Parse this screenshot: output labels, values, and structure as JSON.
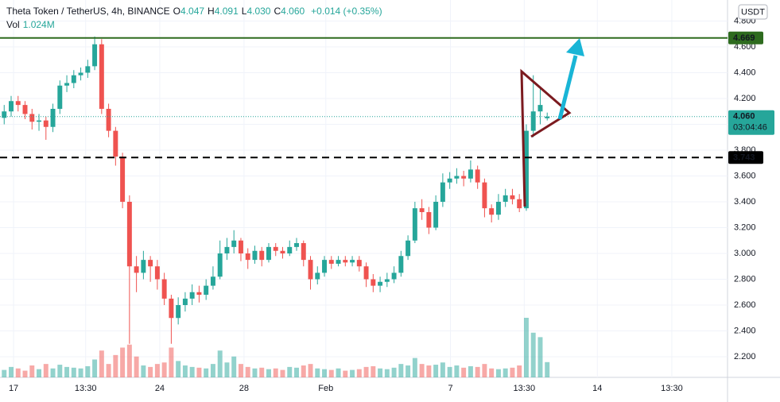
{
  "header": {
    "symbol": "Theta Token / TetherUS, 4h, BINANCE",
    "ohlc": [
      {
        "label": "O",
        "value": "4.047"
      },
      {
        "label": "H",
        "value": "4.091"
      },
      {
        "label": "L",
        "value": "4.030"
      },
      {
        "label": "C",
        "value": "4.060"
      }
    ],
    "change": "+0.014 (+0.35%)",
    "volume_label": "Vol",
    "volume_value": "1.024M"
  },
  "chart_data": {
    "type": "candlestick",
    "currency": "USDT",
    "open": [
      4.05,
      4.1,
      4.18,
      4.15,
      4.08,
      4.02,
      4.03,
      3.98,
      4.12,
      4.3,
      4.32,
      4.38,
      4.4,
      4.45,
      4.62,
      4.12,
      3.95,
      3.75,
      3.4,
      2.9,
      2.85,
      2.95,
      2.9,
      2.8,
      2.65,
      2.5,
      2.6,
      2.65,
      2.7,
      2.68,
      2.75,
      2.82,
      3.0,
      3.05,
      3.1,
      3.0,
      2.95,
      3.02,
      2.95,
      3.05,
      3.02,
      3.0,
      3.05,
      3.08,
      2.95,
      2.8,
      2.85,
      2.95,
      2.92,
      2.95,
      2.93,
      2.95,
      2.9,
      2.8,
      2.75,
      2.78,
      2.8,
      2.85,
      2.98,
      3.1,
      3.35,
      3.32,
      3.2,
      3.4,
      3.55,
      3.58,
      3.6,
      3.58,
      3.65,
      3.55,
      3.35,
      3.3,
      3.4,
      3.45,
      3.42,
      3.35,
      3.95,
      4.1,
      4.047
    ],
    "high": [
      4.15,
      4.22,
      4.22,
      4.18,
      4.12,
      4.08,
      4.06,
      4.16,
      4.34,
      4.38,
      4.42,
      4.44,
      4.5,
      4.68,
      4.66,
      4.16,
      3.98,
      3.78,
      3.45,
      2.98,
      3.02,
      2.98,
      2.95,
      2.85,
      2.68,
      2.66,
      2.7,
      2.76,
      2.75,
      2.8,
      2.9,
      3.1,
      3.12,
      3.18,
      3.12,
      3.04,
      3.06,
      3.05,
      3.08,
      3.08,
      3.05,
      3.1,
      3.12,
      3.1,
      2.98,
      2.9,
      2.98,
      2.98,
      2.98,
      2.98,
      2.98,
      2.98,
      2.93,
      2.84,
      2.82,
      2.85,
      2.9,
      3.02,
      3.14,
      3.4,
      3.42,
      3.36,
      3.45,
      3.62,
      3.63,
      3.66,
      3.64,
      3.72,
      3.68,
      3.58,
      3.38,
      3.46,
      3.5,
      3.5,
      3.46,
      4.0,
      4.38,
      4.28,
      4.091
    ],
    "low": [
      4.0,
      4.06,
      4.1,
      4.04,
      3.96,
      3.95,
      3.88,
      3.94,
      4.08,
      4.25,
      4.28,
      4.34,
      4.36,
      4.42,
      4.08,
      3.9,
      3.68,
      3.35,
      2.3,
      2.7,
      2.8,
      2.78,
      2.72,
      2.6,
      2.3,
      2.45,
      2.55,
      2.6,
      2.62,
      2.64,
      2.72,
      2.8,
      2.95,
      3.0,
      2.94,
      2.88,
      2.92,
      2.9,
      2.93,
      2.98,
      2.96,
      2.98,
      3.02,
      2.9,
      2.72,
      2.76,
      2.82,
      2.88,
      2.9,
      2.9,
      2.9,
      2.86,
      2.74,
      2.7,
      2.7,
      2.74,
      2.77,
      2.82,
      2.95,
      3.08,
      3.26,
      3.15,
      3.18,
      3.36,
      3.5,
      3.54,
      3.52,
      3.55,
      3.5,
      3.28,
      3.24,
      3.26,
      3.36,
      3.38,
      3.32,
      3.33,
      3.9,
      4.0,
      4.03
    ],
    "close": [
      4.1,
      4.18,
      4.15,
      4.08,
      4.02,
      4.03,
      3.98,
      4.12,
      4.3,
      4.32,
      4.38,
      4.4,
      4.45,
      4.62,
      4.12,
      3.95,
      3.75,
      3.4,
      2.9,
      2.85,
      2.95,
      2.9,
      2.8,
      2.65,
      2.5,
      2.6,
      2.65,
      2.7,
      2.68,
      2.75,
      2.82,
      3.0,
      3.05,
      3.1,
      3.0,
      2.95,
      3.02,
      2.95,
      3.05,
      3.02,
      3.0,
      3.05,
      3.08,
      2.95,
      2.8,
      2.85,
      2.95,
      2.92,
      2.95,
      2.93,
      2.95,
      2.9,
      2.8,
      2.75,
      2.78,
      2.8,
      2.85,
      2.98,
      3.1,
      3.35,
      3.32,
      3.2,
      3.4,
      3.55,
      3.58,
      3.6,
      3.58,
      3.65,
      3.55,
      3.35,
      3.3,
      3.4,
      3.45,
      3.42,
      3.35,
      3.95,
      4.1,
      4.15,
      4.06
    ],
    "volume": [
      500000,
      700000,
      600000,
      450000,
      800000,
      550000,
      900000,
      600000,
      850000,
      700000,
      650000,
      600000,
      750000,
      1200000,
      1800000,
      900000,
      1500000,
      2000000,
      2200000,
      1400000,
      800000,
      700000,
      900000,
      1000000,
      2000000,
      1100000,
      800000,
      700000,
      650000,
      600000,
      900000,
      1800000,
      1000000,
      1400000,
      900000,
      700000,
      600000,
      650000,
      550000,
      600000,
      500000,
      700000,
      650000,
      800000,
      900000,
      600000,
      550000,
      500000,
      600000,
      450000,
      500000,
      550000,
      700000,
      750000,
      600000,
      550000,
      650000,
      900000,
      800000,
      1300000,
      900000,
      800000,
      850000,
      1000000,
      700000,
      800000,
      650000,
      750000,
      700000,
      900000,
      600000,
      550000,
      600000,
      650000,
      800000,
      4000000,
      3000000,
      2700000,
      1024000
    ],
    "up_color": "#26a69a",
    "down_color": "#ef5350",
    "xlim": [
      -0.6,
      103.9
    ],
    "xticks": [
      {
        "value": 1.35,
        "label": "17"
      },
      {
        "value": 11.7,
        "label": "13:30"
      },
      {
        "value": 22.35,
        "label": "24"
      },
      {
        "value": 34.45,
        "label": "28"
      },
      {
        "value": 46.2,
        "label": "Feb"
      },
      {
        "value": 64.1,
        "label": "7"
      },
      {
        "value": 74.7,
        "label": "13:30"
      },
      {
        "value": 85.2,
        "label": "14"
      },
      {
        "value": 95.9,
        "label": "13:30"
      }
    ],
    "ylim": [
      2.04,
      4.963
    ],
    "yticks": [
      {
        "value": 2.2,
        "label": "2.200"
      },
      {
        "value": 2.4,
        "label": "2.400"
      },
      {
        "value": 2.6,
        "label": "2.600"
      },
      {
        "value": 2.8,
        "label": "2.800"
      },
      {
        "value": 3.0,
        "label": "3.000"
      },
      {
        "value": 3.2,
        "label": "3.200"
      },
      {
        "value": 3.4,
        "label": "3.400"
      },
      {
        "value": 3.6,
        "label": "3.600"
      },
      {
        "value": 3.8,
        "label": "3.800"
      },
      {
        "value": 4.0,
        "label": "4.000"
      },
      {
        "value": 4.2,
        "label": "4.200"
      },
      {
        "value": 4.4,
        "label": "4.400"
      },
      {
        "value": 4.6,
        "label": "4.600"
      },
      {
        "value": 4.8,
        "label": "4.800"
      }
    ],
    "grid": true,
    "price_lines": [
      {
        "value": 4.669,
        "label": "4.669",
        "color": "#2e6b1f",
        "style": "solid"
      },
      {
        "value": 3.743,
        "label": "3.743",
        "color": "#000000",
        "style": "dashed"
      }
    ],
    "last_price": {
      "value": 4.06,
      "label": "4.060",
      "countdown": "03:04:46",
      "color": "#26a69a"
    }
  }
}
